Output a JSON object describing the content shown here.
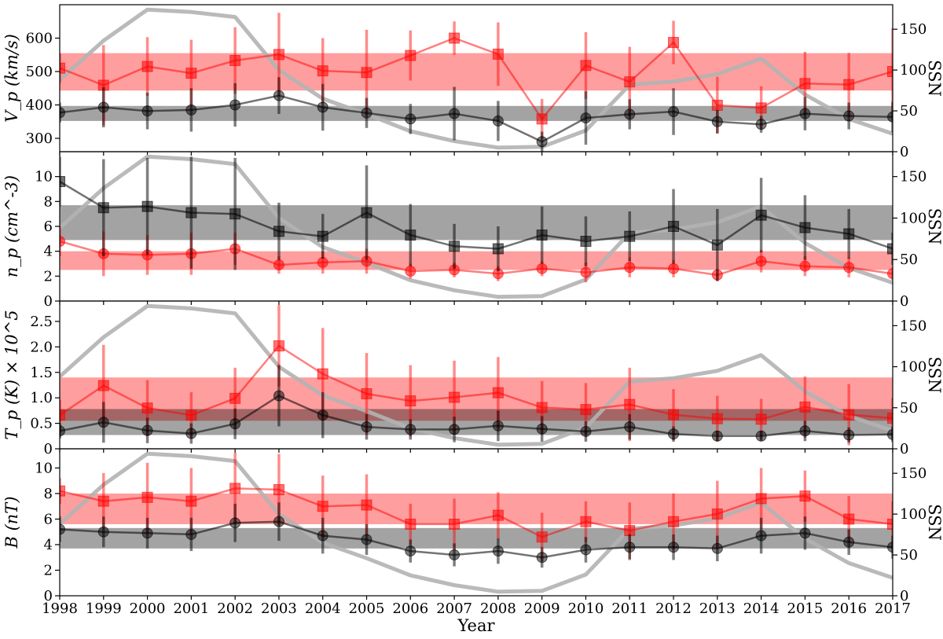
{
  "chart_data": {
    "type": "line",
    "x_axis": {
      "label": "Year",
      "range": [
        1998,
        2017
      ],
      "ticks": [
        "1998",
        "1999",
        "2000",
        "2001",
        "2002",
        "2003",
        "2004",
        "2005",
        "2006",
        "2007",
        "2008",
        "2009",
        "2010",
        "2011",
        "2012",
        "2013",
        "2014",
        "2015",
        "2016",
        "2017"
      ]
    },
    "colors": {
      "red": "#ff0000",
      "black": "#000000",
      "ssn": "#b3b3b3"
    },
    "ssn_axis": {
      "label": "SSN",
      "range": [
        0,
        180
      ],
      "ticks": [
        "0",
        "50",
        "100",
        "150"
      ]
    },
    "ssn": {
      "x": [
        1998,
        1999,
        2000,
        2001,
        2002,
        2003,
        2004,
        2005,
        2006,
        2007,
        2008,
        2009,
        2010,
        2011,
        2012,
        2013,
        2014,
        2015,
        2016,
        2017
      ],
      "values": [
        88,
        136,
        174,
        171,
        165,
        100,
        65,
        46,
        25,
        13,
        5,
        6,
        26,
        82,
        86,
        95,
        114,
        70,
        40,
        22
      ]
    },
    "panels": [
      {
        "id": "vp",
        "ylabel": "V_p (km/s)",
        "ylim": [
          260,
          700
        ],
        "yticks": [
          "300",
          "400",
          "500",
          "600"
        ],
        "bands": [
          {
            "color": "red",
            "range": [
              443,
              555
            ]
          },
          {
            "color": "black",
            "range": [
              352,
              397
            ]
          }
        ],
        "series": [
          {
            "color": "red",
            "marker": "square",
            "values": [
              510,
              459,
              515,
              495,
              533,
              551,
              502,
              497,
              548,
              600,
              552,
              358,
              518,
              469,
              587,
              399,
              391,
              464,
              461,
              500
            ],
            "error": [
              45,
              120,
              88,
              100,
              100,
              125,
              98,
              128,
              75,
              50,
              95,
              60,
              100,
              105,
              65,
              85,
              65,
              95,
              95,
              130
            ]
          },
          {
            "color": "black",
            "marker": "circle",
            "values": [
              377,
              393,
              382,
              385,
              400,
              428,
              393,
              376,
              358,
              374,
              352,
              290,
              361,
              372,
              380,
              350,
              342,
              374,
              367,
              364
            ],
            "error": [
              30,
              60,
              55,
              65,
              65,
              55,
              70,
              45,
              45,
              80,
              60,
              30,
              80,
              45,
              70,
              35,
              25,
              50,
              40,
              45
            ]
          }
        ]
      },
      {
        "id": "np",
        "ylabel": "n_p (cm^-3)",
        "ylim": [
          0,
          12
        ],
        "yticks": [
          "0",
          "2",
          "4",
          "6",
          "8",
          "10"
        ],
        "bands": [
          {
            "color": "red",
            "range": [
              2.5,
              4.0
            ]
          },
          {
            "color": "black",
            "range": [
              4.9,
              7.7
            ]
          }
        ],
        "series": [
          {
            "color": "red",
            "marker": "circle",
            "values": [
              4.8,
              3.8,
              3.7,
              3.8,
              4.2,
              2.9,
              3.1,
              3.2,
              2.4,
              2.5,
              2.2,
              2.6,
              2.3,
              2.7,
              2.6,
              2.1,
              3.2,
              2.8,
              2.7,
              2.2
            ],
            "error": [
              1.2,
              1.8,
              1.6,
              1.7,
              1.3,
              0.7,
              0.9,
              1.0,
              0.6,
              0.6,
              0.6,
              0.6,
              0.8,
              0.8,
              0.7,
              0.5,
              0.9,
              0.8,
              0.8,
              0.5
            ]
          },
          {
            "color": "black",
            "marker": "square",
            "values": [
              9.6,
              7.5,
              7.6,
              7.1,
              7.0,
              5.6,
              5.2,
              7.1,
              5.3,
              4.4,
              4.2,
              5.3,
              4.8,
              5.2,
              6.0,
              4.5,
              6.9,
              5.9,
              5.4,
              4.2
            ],
            "error": [
              2.0,
              3.9,
              3.9,
              4.5,
              4.5,
              2.3,
              1.8,
              3.8,
              2.5,
              1.8,
              1.8,
              2.3,
              2.0,
              2.0,
              3.0,
              2.9,
              3.0,
              2.6,
              2.0,
              1.3
            ]
          }
        ]
      },
      {
        "id": "tp",
        "ylabel": "T_p (K) × 10^5",
        "ylim": [
          0,
          2.9
        ],
        "yticks": [
          "0",
          "0.5",
          "1.0",
          "1.5",
          "2.0",
          "2.5"
        ],
        "bands": [
          {
            "color": "red",
            "range": [
              0.55,
              1.4
            ]
          },
          {
            "color": "black",
            "range": [
              0.27,
              0.78
            ]
          }
        ],
        "series": [
          {
            "color": "red",
            "marker": "square",
            "values": [
              0.66,
              1.24,
              0.8,
              0.66,
              0.99,
              2.02,
              1.47,
              1.08,
              0.94,
              1.01,
              1.1,
              0.81,
              0.77,
              0.87,
              0.67,
              0.59,
              0.58,
              0.82,
              0.67,
              0.6
            ],
            "error": [
              0.3,
              0.8,
              0.55,
              0.45,
              0.6,
              0.8,
              0.9,
              0.8,
              0.7,
              0.72,
              0.7,
              0.52,
              0.52,
              0.72,
              0.5,
              0.45,
              0.4,
              0.6,
              0.6,
              0.4
            ]
          },
          {
            "color": "black",
            "marker": "circle",
            "values": [
              0.35,
              0.52,
              0.36,
              0.3,
              0.49,
              1.04,
              0.66,
              0.43,
              0.38,
              0.38,
              0.45,
              0.39,
              0.34,
              0.43,
              0.29,
              0.25,
              0.25,
              0.35,
              0.27,
              0.28
            ],
            "error": [
              0.15,
              0.4,
              0.25,
              0.2,
              0.3,
              0.6,
              0.45,
              0.25,
              0.2,
              0.25,
              0.3,
              0.25,
              0.2,
              0.25,
              0.15,
              0.1,
              0.1,
              0.2,
              0.15,
              0.15
            ]
          }
        ]
      },
      {
        "id": "b",
        "ylabel": "B (nT)",
        "ylim": [
          0,
          11.5
        ],
        "yticks": [
          "0",
          "2",
          "4",
          "6",
          "8",
          "10"
        ],
        "bands": [
          {
            "color": "red",
            "range": [
              5.6,
              8.0
            ]
          },
          {
            "color": "black",
            "range": [
              3.7,
              5.3
            ]
          }
        ],
        "series": [
          {
            "color": "red",
            "marker": "square",
            "values": [
              8.2,
              7.4,
              7.7,
              7.4,
              8.4,
              8.3,
              7.0,
              7.1,
              5.6,
              5.6,
              6.3,
              4.6,
              5.8,
              5.1,
              5.8,
              6.4,
              7.6,
              7.8,
              6.0,
              5.6
            ],
            "error": [
              1.0,
              2.2,
              2.7,
              2.6,
              2.8,
              2.8,
              2.4,
              2.4,
              1.6,
              2.0,
              1.8,
              1.9,
              1.6,
              2.2,
              2.2,
              2.6,
              2.4,
              2.0,
              1.8,
              1.8
            ]
          },
          {
            "color": "black",
            "marker": "circle",
            "values": [
              5.2,
              5.0,
              4.9,
              4.8,
              5.7,
              5.8,
              4.7,
              4.4,
              3.5,
              3.2,
              3.5,
              3.0,
              3.6,
              3.8,
              3.8,
              3.7,
              4.7,
              4.9,
              4.2,
              3.8
            ],
            "error": [
              1.0,
              1.2,
              1.2,
              1.3,
              1.5,
              1.5,
              1.4,
              1.2,
              0.9,
              0.9,
              1.0,
              0.8,
              1.0,
              1.0,
              1.0,
              1.0,
              1.4,
              1.3,
              1.0,
              0.9
            ]
          }
        ]
      }
    ]
  }
}
